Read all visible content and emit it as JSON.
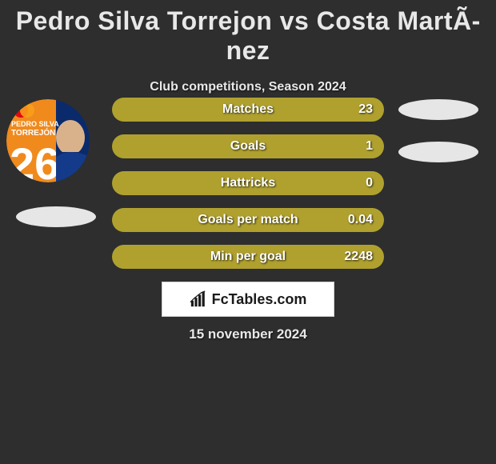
{
  "header": {
    "title": "Pedro Silva Torrejon vs Costa MartÃ­nez",
    "subtitle": "Club competitions, Season 2024"
  },
  "avatar": {
    "topText1": "PEDRO SILVA",
    "topText2": "TORREJÓN",
    "number": "26",
    "bg_primary": "#f08a1d",
    "bg_secondary": "#0a2a6b",
    "text_color": "#ffffff",
    "badge_color": "#e30613"
  },
  "stats": {
    "bar_color": "#b0a12f",
    "rows": [
      {
        "label": "Matches",
        "value": "23",
        "fill_pct": 100
      },
      {
        "label": "Goals",
        "value": "1",
        "fill_pct": 100
      },
      {
        "label": "Hattricks",
        "value": "0",
        "fill_pct": 100
      },
      {
        "label": "Goals per match",
        "value": "0.04",
        "fill_pct": 100
      },
      {
        "label": "Min per goal",
        "value": "2248",
        "fill_pct": 100
      }
    ]
  },
  "logo": {
    "text": "FcTables.com"
  },
  "date": "15 november 2024",
  "colors": {
    "page_bg": "#2e2e2e",
    "text": "#e8e8e8",
    "title_fontsize": 32,
    "subtitle_fontsize": 16
  }
}
